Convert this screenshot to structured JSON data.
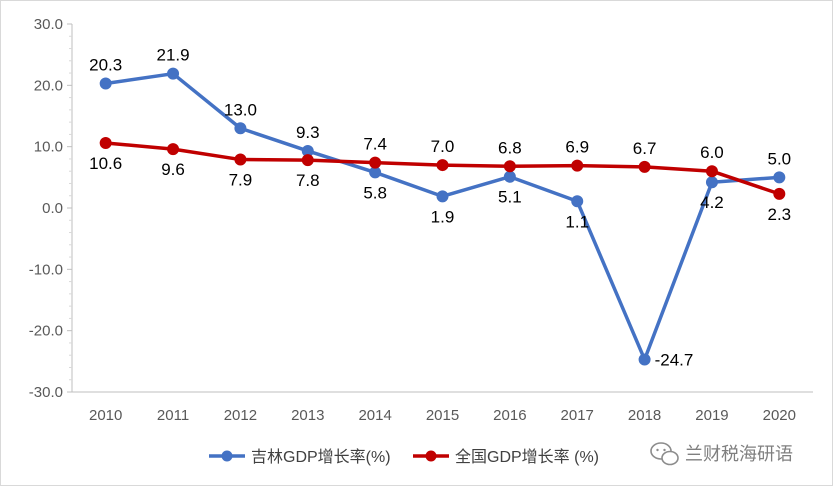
{
  "chart_data": {
    "type": "line",
    "categories": [
      "2010",
      "2011",
      "2012",
      "2013",
      "2014",
      "2015",
      "2016",
      "2017",
      "2018",
      "2019",
      "2020"
    ],
    "ylim": [
      -30,
      30
    ],
    "yticks": [
      "30.0",
      "20.0",
      "10.0",
      "0.0",
      "-10.0",
      "-20.0",
      "-30.0"
    ],
    "grid": false,
    "legend_position": "bottom",
    "series": [
      {
        "name": "吉林GDP增长率(%)",
        "color": "#4472C4",
        "values": [
          20.3,
          21.9,
          13.0,
          9.3,
          5.8,
          1.9,
          5.1,
          1.1,
          -24.7,
          4.2,
          5.0
        ],
        "labels": [
          "20.3",
          "21.9",
          "13.0",
          "9.3",
          "5.8",
          "1.9",
          "5.1",
          "1.1",
          "-24.7",
          "4.2",
          "5.0"
        ]
      },
      {
        "name": "全国GDP增长率 (%)",
        "color": "#C00000",
        "values": [
          10.6,
          9.6,
          7.9,
          7.8,
          7.4,
          7.0,
          6.8,
          6.9,
          6.7,
          6.0,
          2.3
        ],
        "labels": [
          "10.6",
          "9.6",
          "7.9",
          "7.8",
          "7.4",
          "7.0",
          "6.8",
          "6.9",
          "6.7",
          "6.0",
          "2.3"
        ]
      }
    ]
  },
  "watermark": {
    "icon": "wechat-icon",
    "text": "兰财税海研语"
  }
}
